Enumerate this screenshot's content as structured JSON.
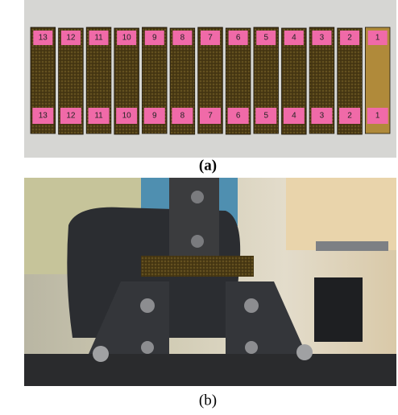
{
  "figure": {
    "panel_a": {
      "caption": "(a)",
      "specimen_labels": [
        "13",
        "12",
        "11",
        "10",
        "9",
        "8",
        "7",
        "6",
        "5",
        "4",
        "3",
        "2",
        "1"
      ]
    },
    "panel_b": {
      "caption": "(b)"
    }
  }
}
